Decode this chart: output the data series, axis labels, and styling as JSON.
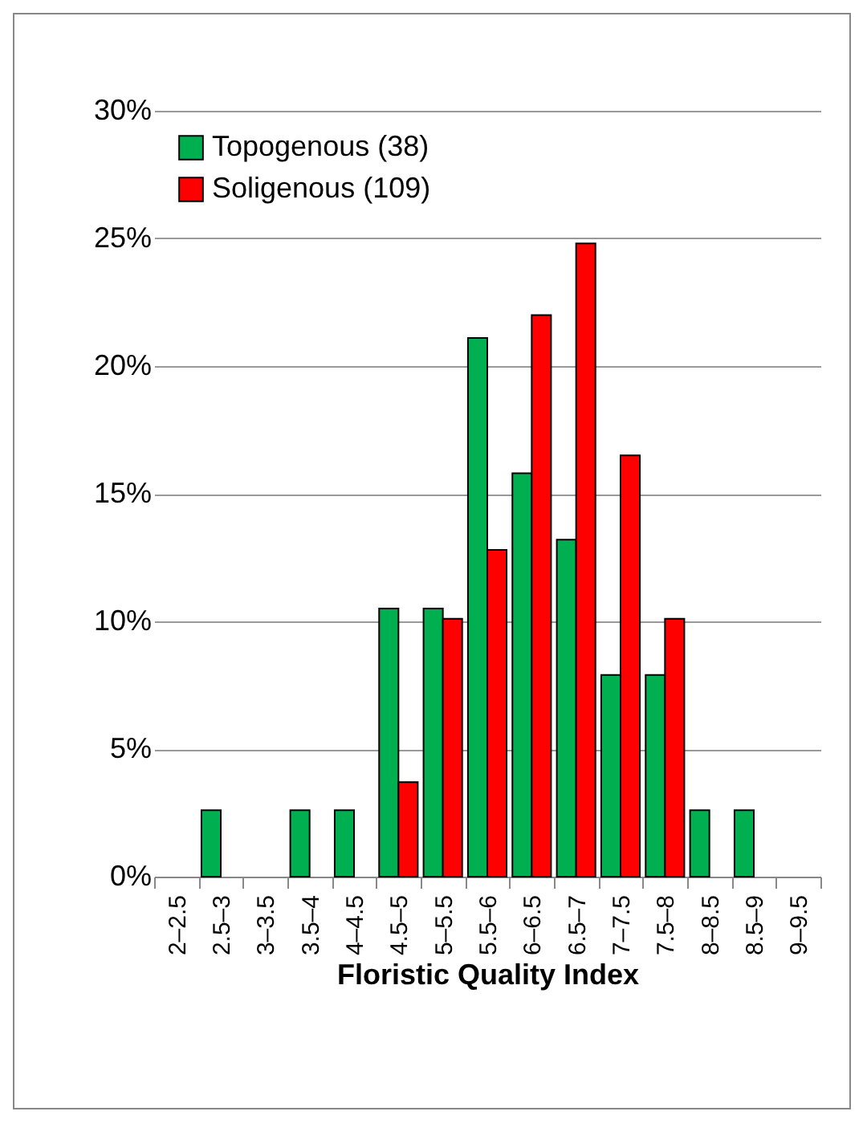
{
  "chart_data": {
    "type": "bar",
    "xlabel": "Floristic Quality Index",
    "categories": [
      "2–2.5",
      "2.5–3",
      "3–3.5",
      "3.5–4",
      "4–4.5",
      "4.5–5",
      "5–5.5",
      "5.5–6",
      "6–6.5",
      "6.5–7",
      "7–7.5",
      "7.5–8",
      "8–8.5",
      "8.5–9",
      "9–9.5"
    ],
    "series": [
      {
        "name": "Topogenous (38)",
        "color": "#00b050",
        "values": [
          0,
          2.6,
          0,
          2.6,
          2.6,
          10.5,
          10.5,
          21.1,
          15.8,
          13.2,
          7.9,
          7.9,
          2.6,
          2.6,
          0
        ]
      },
      {
        "name": "Soligenous (109)",
        "color": "#ff0000",
        "values": [
          0,
          0,
          0,
          0,
          0,
          3.7,
          10.1,
          12.8,
          22.0,
          24.8,
          16.5,
          10.1,
          0,
          0,
          0
        ]
      }
    ],
    "ylim": [
      0,
      30
    ],
    "yticks": [
      {
        "value": 0,
        "label": "0%"
      },
      {
        "value": 5,
        "label": "5%"
      },
      {
        "value": 10,
        "label": "10%"
      },
      {
        "value": 15,
        "label": "15%"
      },
      {
        "value": 20,
        "label": "20%"
      },
      {
        "value": 25,
        "label": "25%"
      },
      {
        "value": 30,
        "label": "30%"
      }
    ],
    "grid": "y",
    "legend": "top left"
  }
}
